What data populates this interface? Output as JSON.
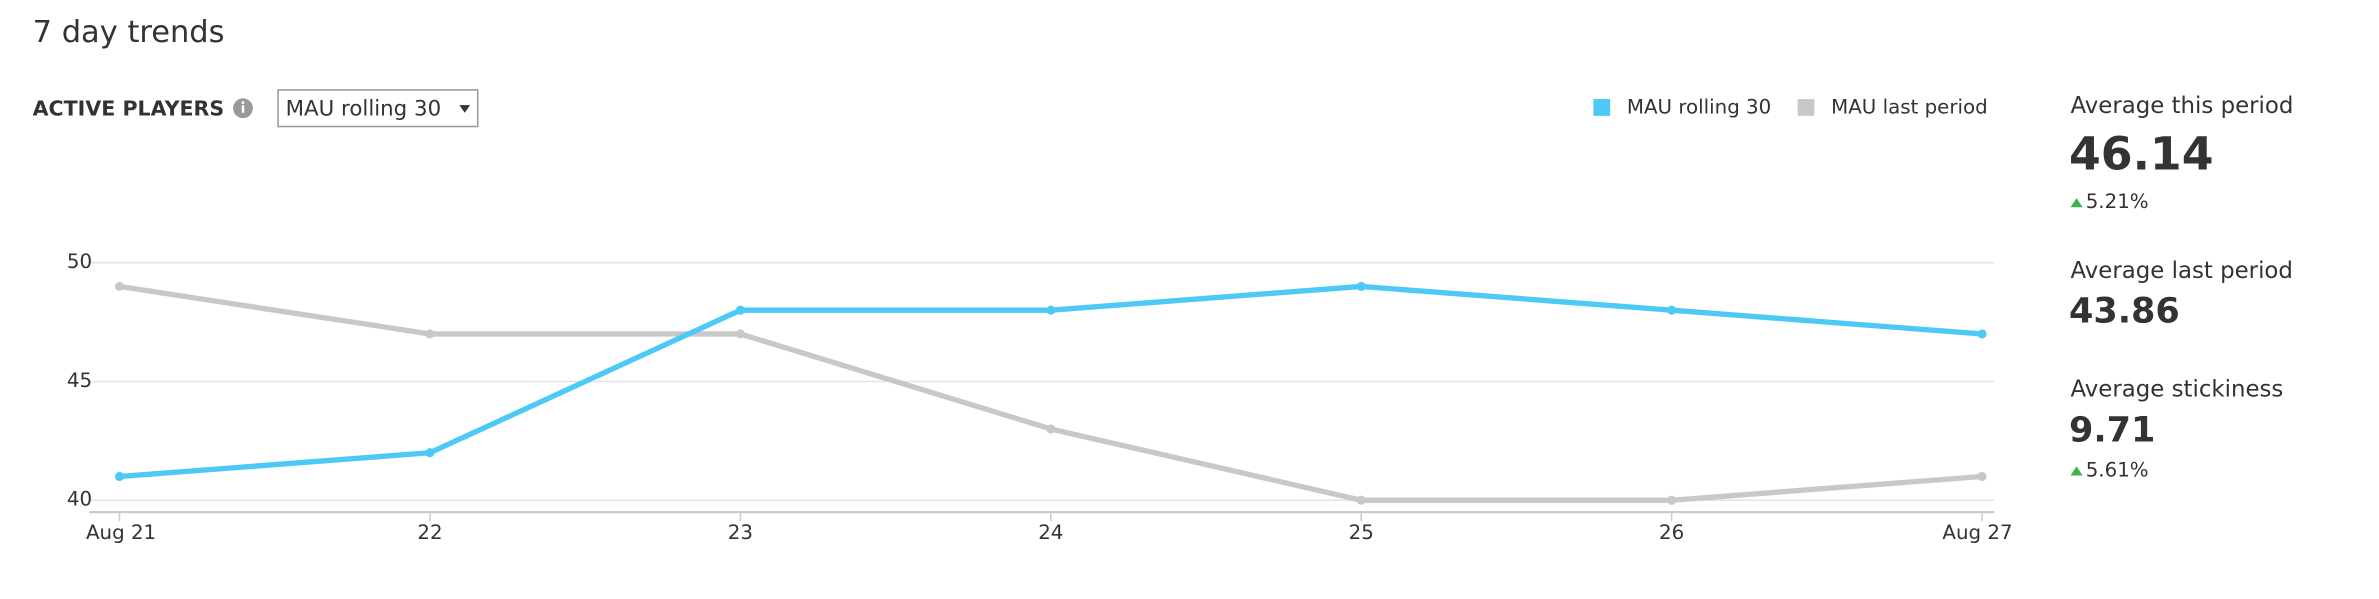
{
  "header": {
    "title": "7 day trends"
  },
  "controls": {
    "metric_label": "ACTIVE PLAYERS",
    "dropdown": "MAU rolling 30"
  },
  "chart_data": {
    "type": "line",
    "categories": [
      "Aug 21",
      "22",
      "23",
      "24",
      "25",
      "26",
      "Aug 27"
    ],
    "series": [
      {
        "name": "MAU rolling 30",
        "color": "#4dc9f6",
        "values": [
          41,
          42,
          48,
          48,
          49,
          48,
          47
        ]
      },
      {
        "name": "MAU last period",
        "color": "#c8c8c8",
        "values": [
          49,
          47,
          47,
          43,
          40,
          40,
          41
        ]
      }
    ],
    "ylim": [
      39.5,
      54
    ],
    "yticks": [
      40,
      45,
      50
    ],
    "grid": true,
    "legend": "top-right"
  },
  "summary": [
    {
      "label": "Average this period",
      "value": 46.14,
      "change": "5.21%"
    },
    {
      "label": "Average last period",
      "value": 43.86
    },
    {
      "label": "Average stickiness",
      "value": 9.71,
      "change": "5.61%"
    }
  ]
}
